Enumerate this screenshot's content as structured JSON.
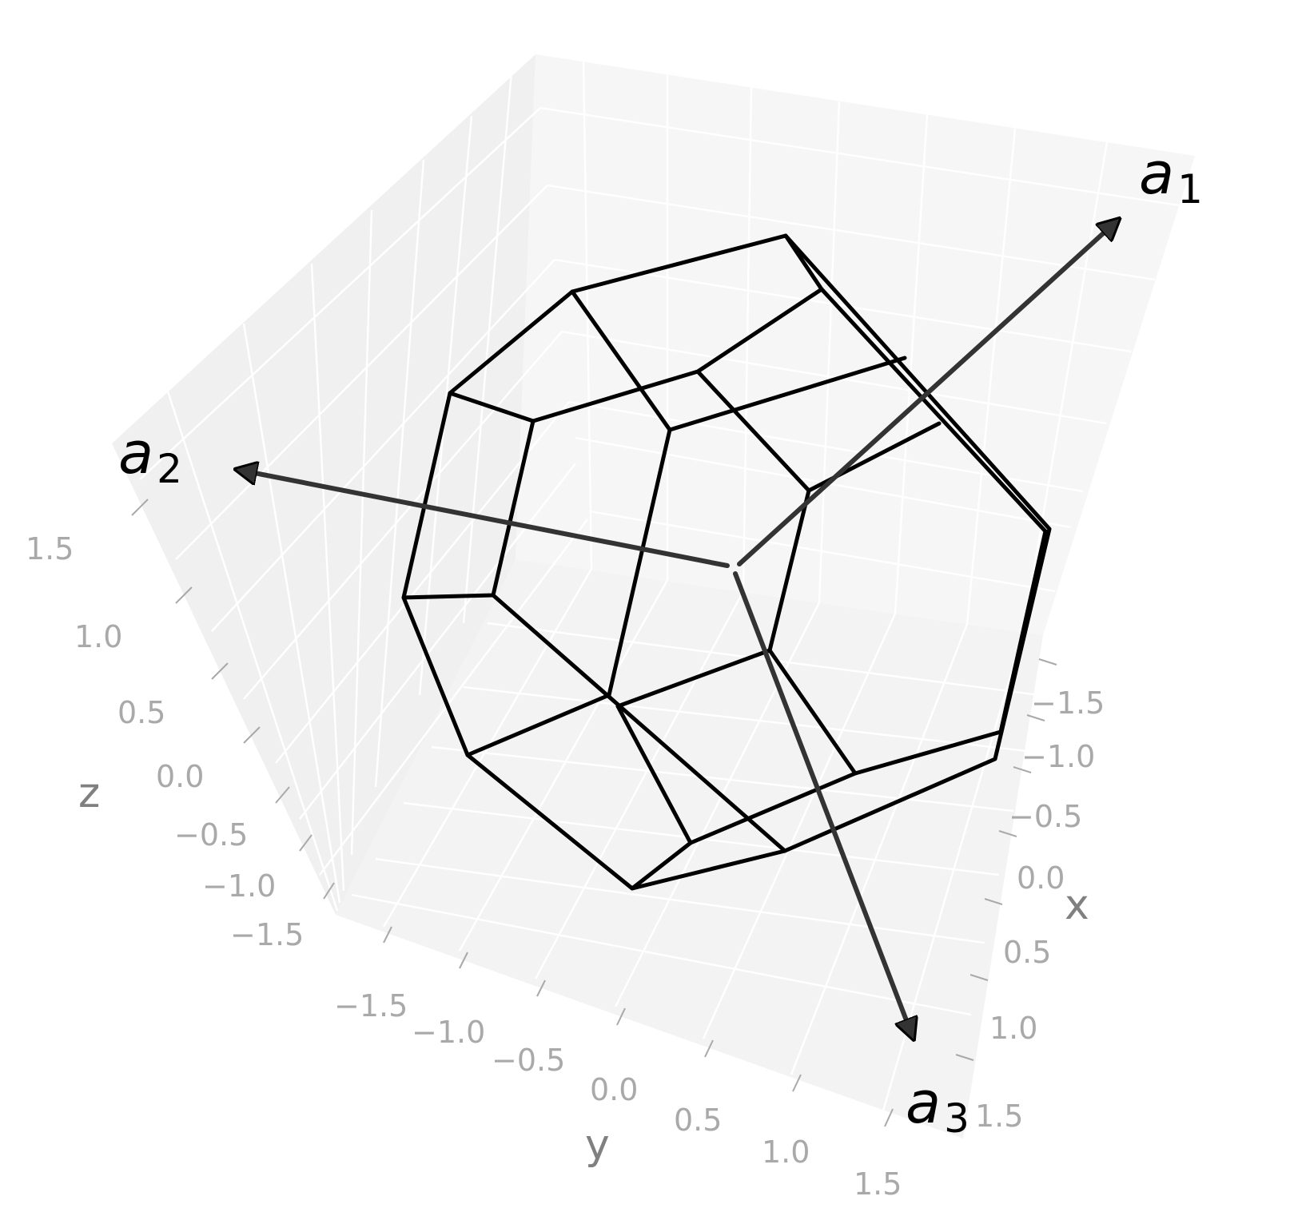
{
  "axes": {
    "x": {
      "label": "x",
      "ticks": [
        "−1.5",
        "−1.0",
        "−0.5",
        "0.0",
        "0.5",
        "1.0",
        "1.5"
      ]
    },
    "y": {
      "label": "y",
      "ticks": [
        "−1.5",
        "−1.0",
        "−0.5",
        "0.0",
        "0.5",
        "1.0",
        "1.5"
      ]
    },
    "z": {
      "label": "z",
      "ticks": [
        "−1.5",
        "−1.0",
        "−0.5",
        "0.0",
        "0.5",
        "1.0",
        "1.5"
      ]
    }
  },
  "vectors": [
    {
      "name": "a",
      "sub": "1"
    },
    {
      "name": "a",
      "sub": "2"
    },
    {
      "name": "a",
      "sub": "3"
    }
  ],
  "colors": {
    "pane": "#f2f2f2",
    "pane_light": "#f6f6f6",
    "grid": "#ffffff",
    "edges": "#000000",
    "arrows": "#333333",
    "ticks": "#a9a9a9"
  }
}
